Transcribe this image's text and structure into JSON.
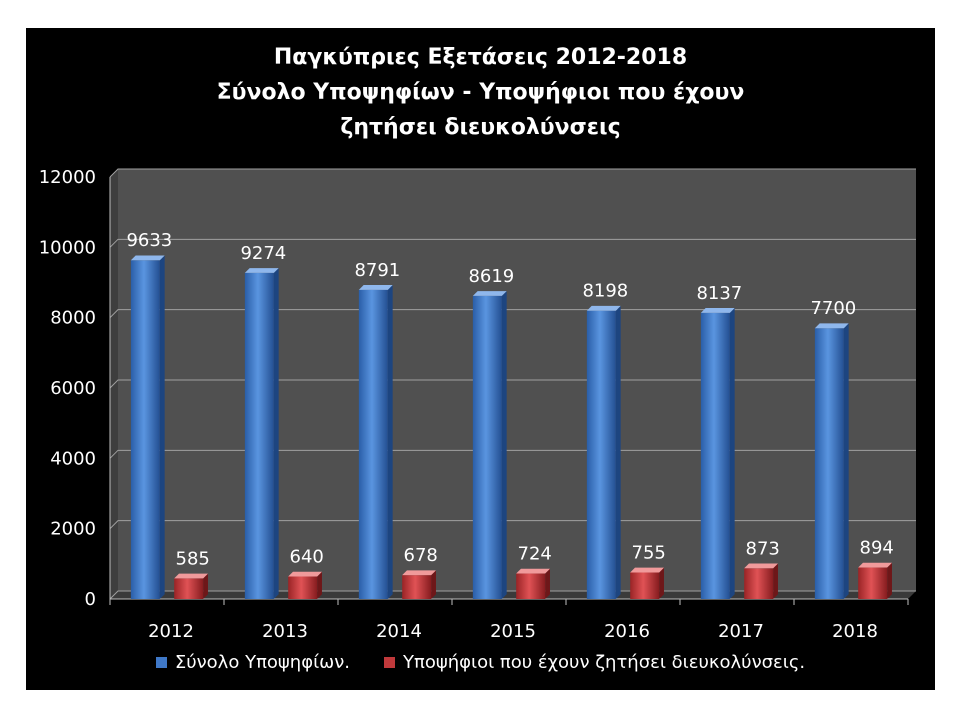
{
  "chart_data": {
    "type": "bar",
    "title_lines": [
      "Παγκύπριες Εξετάσεις 2012-2018",
      "Σύνολο Υποψηφίων - Υποψήφιοι που έχουν",
      "ζητήσει διευκολύνσεις"
    ],
    "categories": [
      "2012",
      "2013",
      "2014",
      "2015",
      "2016",
      "2017",
      "2018"
    ],
    "series": [
      {
        "name": "Σύνολο Υποψηφίων.",
        "values": [
          9633,
          9274,
          8791,
          8619,
          8198,
          8137,
          7700
        ],
        "color": "#3f78c8"
      },
      {
        "name": "Υποψήφιοι που έχουν ζητήσει διευκολύνσεις.",
        "values": [
          585,
          640,
          678,
          724,
          755,
          873,
          894
        ],
        "color": "#c0393b"
      }
    ],
    "ylim": [
      0,
      12000
    ],
    "yticks": [
      0,
      2000,
      4000,
      6000,
      8000,
      10000,
      12000
    ],
    "grid": true,
    "legend_position": "bottom",
    "plot_background": "#505050",
    "gridline_color": "#a0a0a0",
    "text_color": "#ffffff"
  }
}
